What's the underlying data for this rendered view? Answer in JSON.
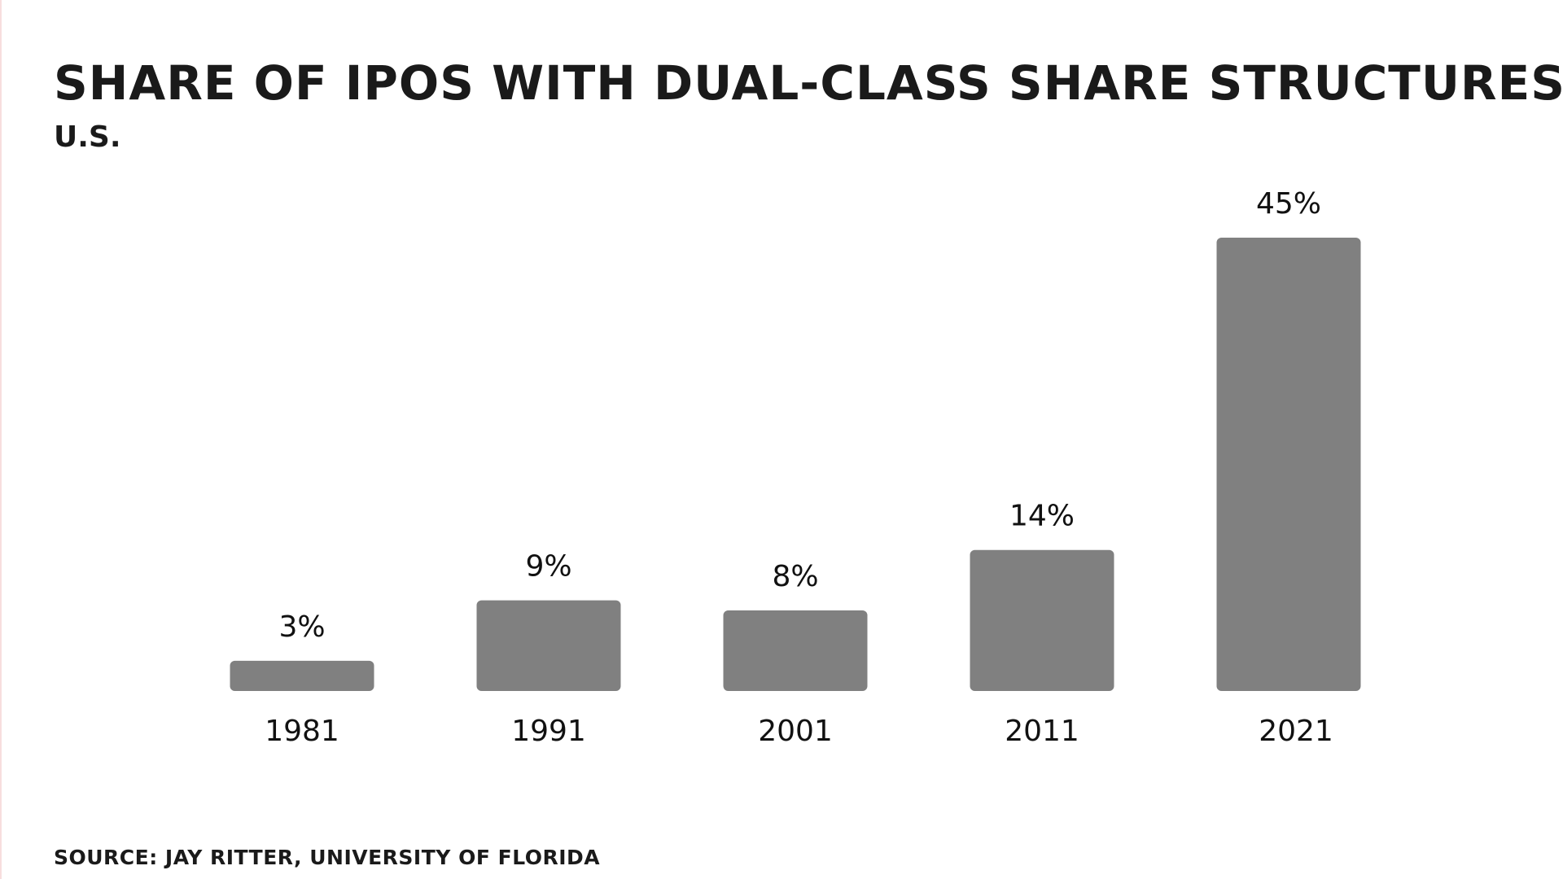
{
  "chart_data": {
    "type": "bar",
    "title": "SHARE OF IPOS WITH DUAL-CLASS SHARE STRUCTURES",
    "subtitle": "U.S.",
    "source": "SOURCE: JAY RITTER, UNIVERSITY OF FLORIDA",
    "categories": [
      "1981",
      "1991",
      "2001",
      "2011",
      "2021"
    ],
    "values": [
      3,
      9,
      8,
      14,
      45
    ],
    "value_labels": [
      "3%",
      "9%",
      "8%",
      "14%",
      "45%"
    ],
    "color": "#808080"
  }
}
